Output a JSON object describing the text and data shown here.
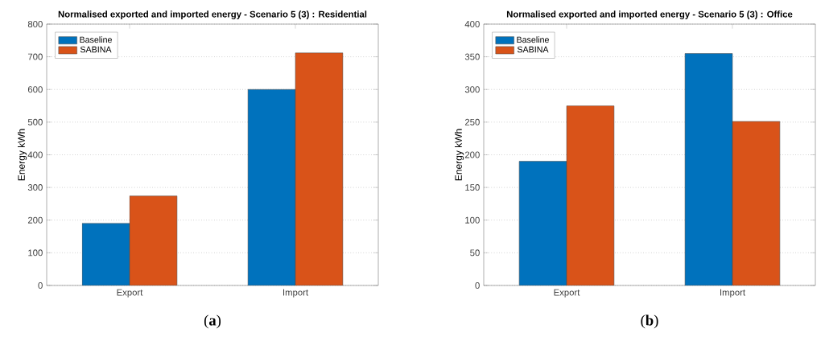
{
  "chart_data": [
    {
      "type": "bar",
      "title": "Normalised exported and imported energy - Scenario 5 (3) : Residential",
      "ylabel": "Energy kWh",
      "categories": [
        "Export",
        "Import"
      ],
      "series": [
        {
          "name": "Baseline",
          "color": "#0072bd",
          "values": [
            190,
            600
          ]
        },
        {
          "name": "SABINA",
          "color": "#d95319",
          "values": [
            274,
            712
          ]
        }
      ],
      "ylim": [
        0,
        800
      ],
      "yticks": [
        0,
        100,
        200,
        300,
        400,
        500,
        600,
        700,
        800
      ],
      "grid": "y",
      "legend": "top left",
      "annotations": [
        "(**a**)"
      ]
    },
    {
      "type": "bar",
      "title": "Normalised exported and imported energy - Scenario 5 (3) : Office",
      "ylabel": "Energy kWh",
      "categories": [
        "Export",
        "Import"
      ],
      "series": [
        {
          "name": "Baseline",
          "color": "#0072bd",
          "values": [
            190,
            355
          ]
        },
        {
          "name": "SABINA",
          "color": "#d95319",
          "values": [
            275,
            251
          ]
        }
      ],
      "ylim": [
        0,
        400
      ],
      "yticks": [
        0,
        50,
        100,
        150,
        200,
        250,
        300,
        350,
        400
      ],
      "grid": "y",
      "legend": "top left",
      "annotations": [
        "(**b**)"
      ]
    }
  ]
}
